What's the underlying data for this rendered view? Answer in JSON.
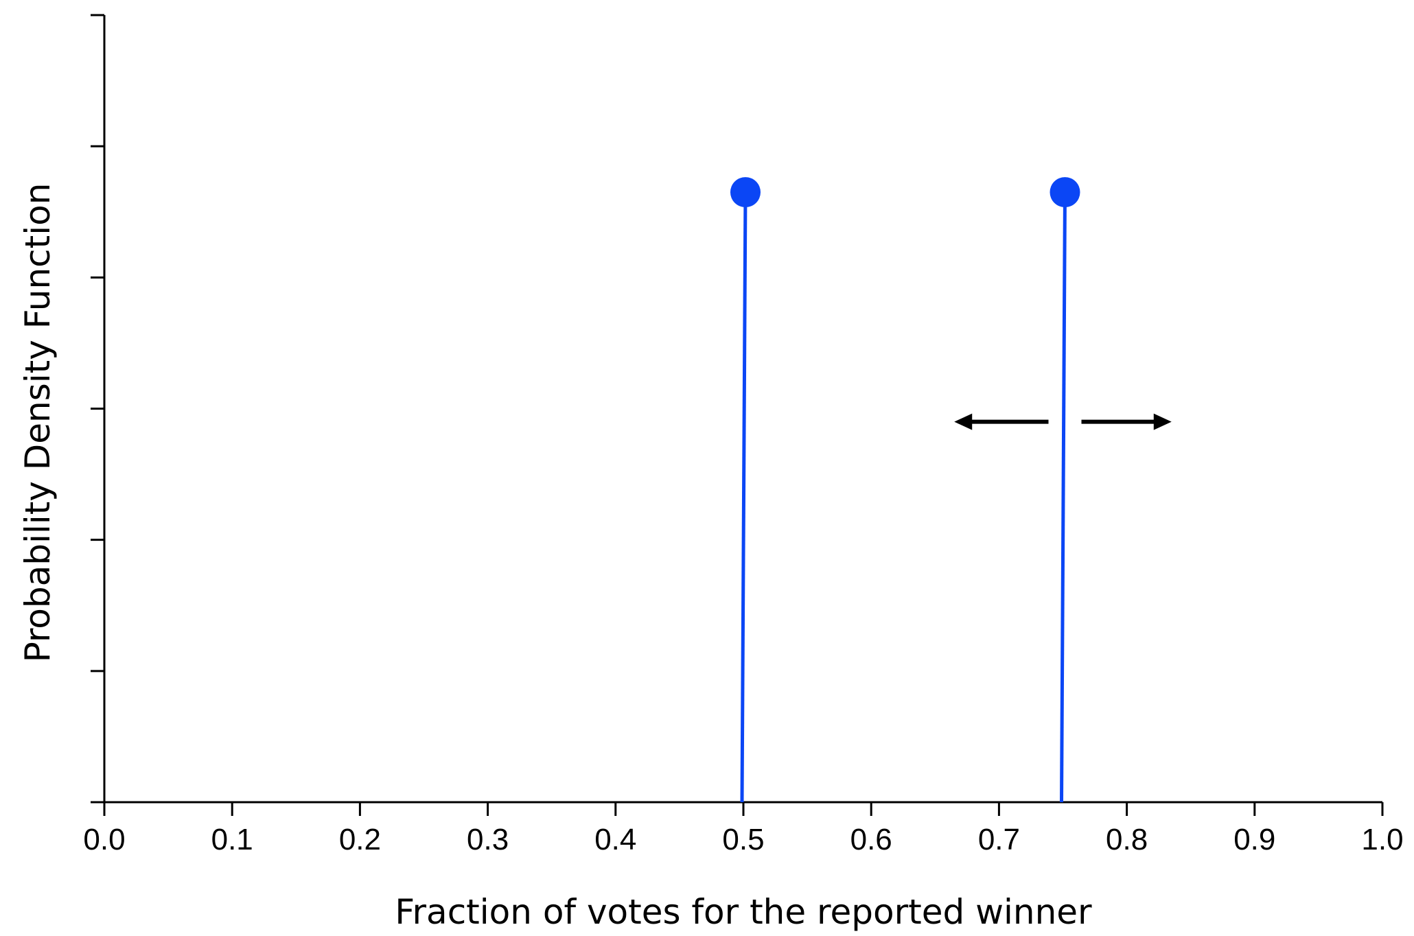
{
  "chart_data": {
    "type": "stem",
    "xlabel": "Fraction of votes for the reported winner",
    "ylabel": "Probability Density Function",
    "xlim": [
      0.0,
      1.0
    ],
    "ylim": [
      0,
      6
    ],
    "x_ticks": [
      "0.0",
      "0.1",
      "0.2",
      "0.3",
      "0.4",
      "0.5",
      "0.6",
      "0.7",
      "0.8",
      "0.9",
      "1.0"
    ],
    "y_tick_count": 7,
    "y_tick_labels_shown": false,
    "grid": false,
    "series": [
      {
        "points": [
          {
            "x": 0.5,
            "y": 4.65
          },
          {
            "x": 0.75,
            "y": 4.65
          }
        ]
      }
    ],
    "annotations": [
      {
        "type": "double-arrow",
        "center_x": 0.75,
        "y": 2.9,
        "from_x": 0.665,
        "to_x": 0.835
      }
    ],
    "colors": {
      "series": "#0b46f5",
      "axis": "#000000",
      "arrow": "#000000"
    }
  }
}
